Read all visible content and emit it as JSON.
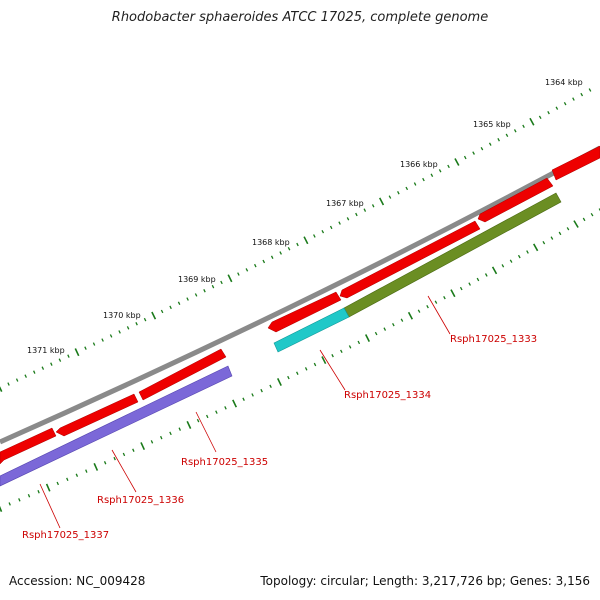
{
  "title": "Rhodobacter sphaeroides ATCC 17025, complete genome",
  "footer": {
    "accession": "Accession: NC_009428",
    "summary": "Topology: circular; Length: 3,217,726 bp; Genes: 3,156"
  },
  "kbp_labels": [
    "1364 kbp",
    "1365 kbp",
    "1366 kbp",
    "1367 kbp",
    "1368 kbp",
    "1369 kbp",
    "1370 kbp",
    "1371 kbp"
  ],
  "genes": [
    {
      "name": "Rsph17025_1333",
      "color": "#6b8e23"
    },
    {
      "name": "Rsph17025_1334",
      "color": "#20c8c8"
    },
    {
      "name": "Rsph17025_1335",
      "color": "#7b68d8"
    },
    {
      "name": "Rsph17025_1336",
      "color": "#7b68d8"
    },
    {
      "name": "Rsph17025_1337",
      "color": "#7b68d8"
    }
  ],
  "colors": {
    "backbone": "#888888",
    "cds": "#ee0000",
    "tick": "#1a7a1a",
    "label_line": "#cc0000"
  }
}
